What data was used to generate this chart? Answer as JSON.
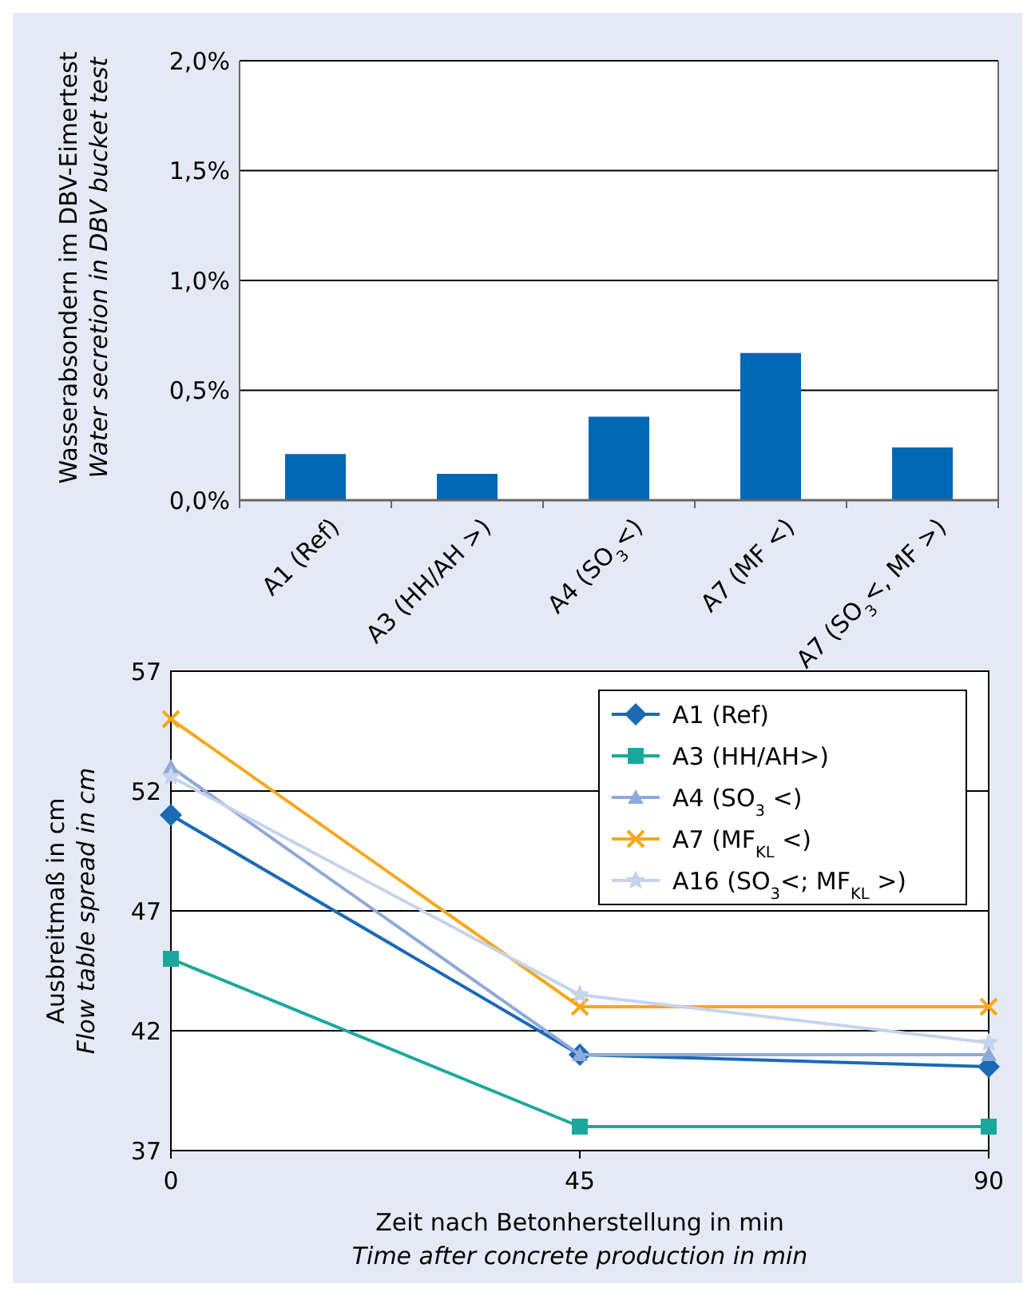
{
  "chart_data": [
    {
      "type": "bar",
      "ylabel": "Wasserabsondern im DBV-Eimertest\nWater secretion in DBV bucket test",
      "categories": [
        "A1 (Ref)",
        "A3 (HH/AH >)",
        "A4 (SO$_{3}$<)",
        "A7 (MF <)",
        "A7 (SO$_{3}$<, MF >)"
      ],
      "values": [
        0.21,
        0.12,
        0.38,
        0.67,
        0.24
      ],
      "color": "#0068b4",
      "ylim": [
        0,
        2
      ],
      "yticks": [
        {
          "value": 0,
          "label": "0,0%"
        },
        {
          "value": 0.5,
          "label": "0,5%"
        },
        {
          "value": 1,
          "label": "1,0%"
        },
        {
          "value": 1.5,
          "label": "1,5%"
        },
        {
          "value": 2,
          "label": "2,0%"
        }
      ],
      "grid": "y"
    },
    {
      "type": "line",
      "xlabel": "Zeit nach Betonherstellung in min\nTime after concrete production in min",
      "ylabel": "Ausbreitmaß in cm\nFlow table spread in cm",
      "x": [
        0,
        45,
        90
      ],
      "xlim": [
        0,
        90
      ],
      "xticks": [
        0,
        45,
        90
      ],
      "ylim": [
        37,
        57
      ],
      "yticks": [
        37,
        42,
        47,
        52,
        57
      ],
      "grid": "y",
      "legend": "top right",
      "series": [
        {
          "name": "A1 (Ref)",
          "color": "#1a6ab5",
          "marker": "diamond",
          "values": [
            51,
            41,
            40.5
          ]
        },
        {
          "name": "A3 (HH/AH>)",
          "color": "#1aa89e",
          "marker": "square",
          "values": [
            45,
            38,
            38
          ]
        },
        {
          "name": "A4 (SO$_{3}$ <)",
          "color": "#8fa9d9",
          "marker": "triangle",
          "values": [
            53,
            41,
            41
          ]
        },
        {
          "name": "A7 (MF$_{KL}$ <)",
          "color": "#f5a81c",
          "marker": "cross",
          "values": [
            55,
            43,
            43
          ]
        },
        {
          "name": "A16 (SO$_{3}$<; MF$_{KL}$ >)",
          "color": "#c5d3ec",
          "marker": "star",
          "values": [
            52.6,
            43.5,
            41.5
          ]
        }
      ]
    }
  ]
}
